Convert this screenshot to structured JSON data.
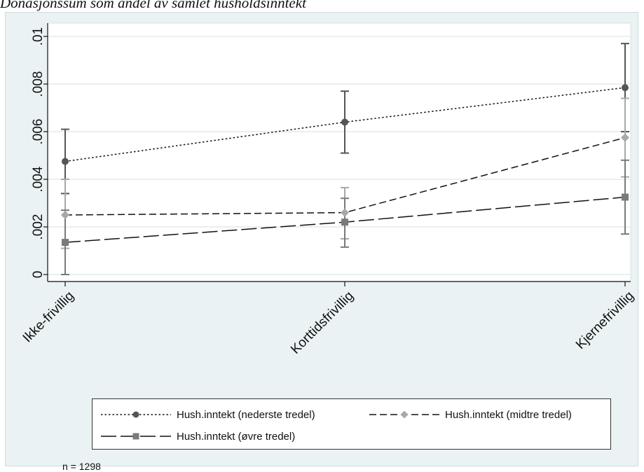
{
  "title": "Donasjonssum som andel av samlet husholdsinntekt",
  "note": "n = 1298",
  "chart_data": {
    "type": "line",
    "title": "Donasjonssum som andel av samlet husholdsinntekt",
    "xlabel": "",
    "ylabel": "",
    "categories": [
      "Ikke-frivillig",
      "Korttidsfrivillig",
      "Kjernefrivillig"
    ],
    "yticks": [
      "0",
      ".002",
      ".004",
      ".006",
      ".008",
      ".01"
    ],
    "ylim": [
      0,
      0.01
    ],
    "grid": true,
    "legend_position": "bottom",
    "series": [
      {
        "name": "Hush.inntekt (nederste tredel)",
        "values": [
          0.00475,
          0.0064,
          0.00785
        ],
        "ci_low": [
          0.0034,
          0.0051,
          0.006
        ],
        "ci_high": [
          0.0061,
          0.0077,
          0.0097
        ],
        "marker": "circle",
        "line_style": "dotted",
        "color": "#555555"
      },
      {
        "name": "Hush.inntekt (midtre tredel)",
        "values": [
          0.0025,
          0.0026,
          0.00575
        ],
        "ci_low": [
          0.0011,
          0.0015,
          0.0041
        ],
        "ci_high": [
          0.004,
          0.00365,
          0.0074
        ],
        "marker": "diamond",
        "line_style": "dashed",
        "color": "#a8a8a8"
      },
      {
        "name": "Hush.inntekt (øvre tredel)",
        "values": [
          0.00135,
          0.0022,
          0.00325
        ],
        "ci_low": [
          0.0,
          0.00115,
          0.0017
        ],
        "ci_high": [
          0.0027,
          0.0032,
          0.0048
        ],
        "marker": "square",
        "line_style": "longdash",
        "color": "#7a7a7a"
      }
    ]
  }
}
